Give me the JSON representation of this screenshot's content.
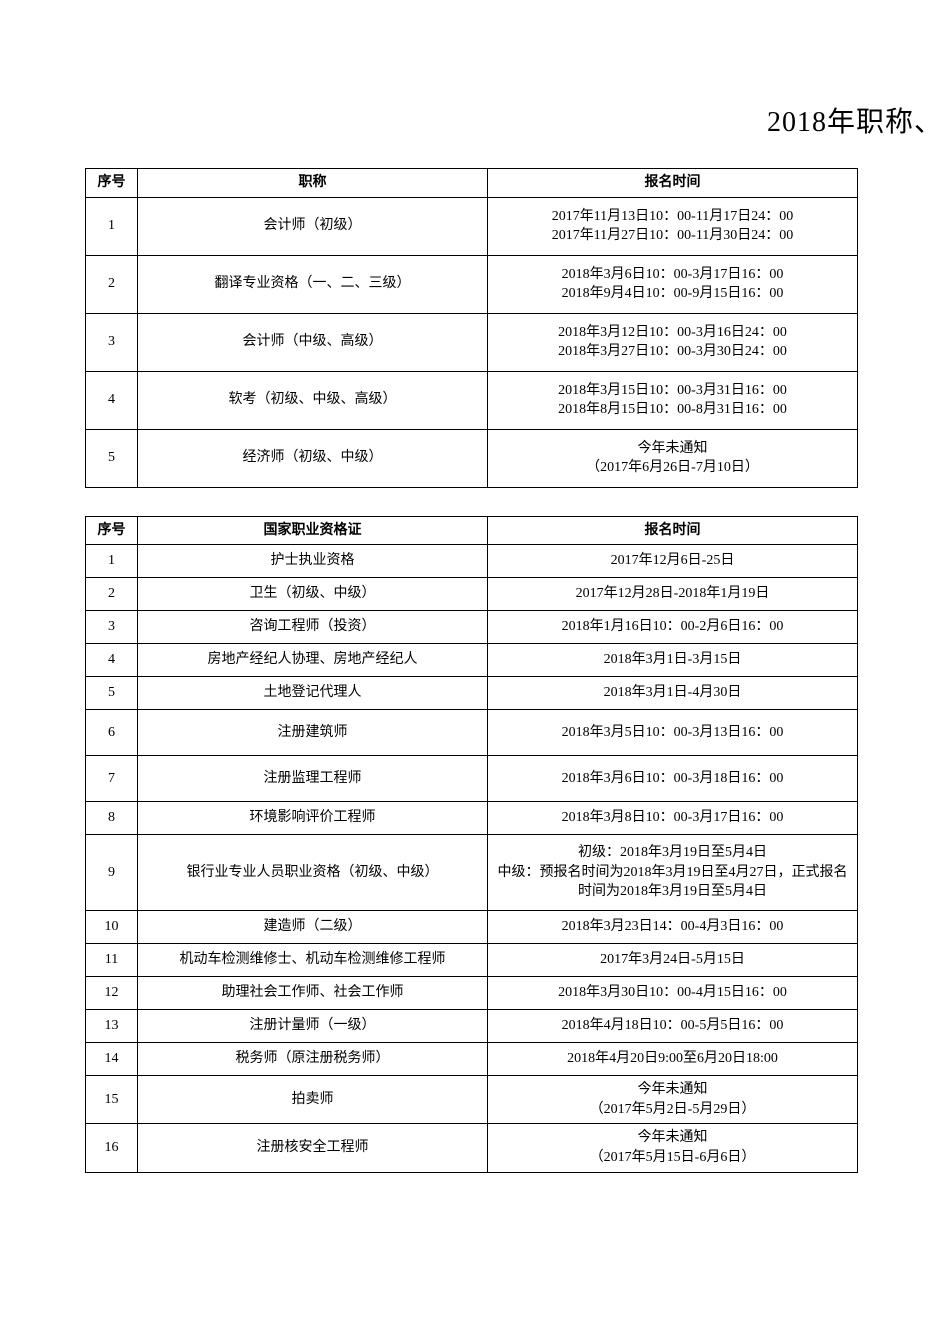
{
  "title": "2018年职称、",
  "table1": {
    "headers": {
      "seq": "序号",
      "title": "职称",
      "time": "报名时间"
    },
    "rows": [
      {
        "seq": "1",
        "title": "会计师（初级）",
        "time": "2017年11月13日10：00-11月17日24：00\n2017年11月27日10：00-11月30日24：00"
      },
      {
        "seq": "2",
        "title": "翻译专业资格（一、二、三级）",
        "time": "2018年3月6日10：00-3月17日16：00\n2018年9月4日10：00-9月15日16：00"
      },
      {
        "seq": "3",
        "title": "会计师（中级、高级）",
        "time": "2018年3月12日10：00-3月16日24：00\n2018年3月27日10：00-3月30日24：00"
      },
      {
        "seq": "4",
        "title": "软考（初级、中级、高级）",
        "time": "2018年3月15日10：00-3月31日16：00\n2018年8月15日10：00-8月31日16：00"
      },
      {
        "seq": "5",
        "title": "经济师（初级、中级）",
        "time": "今年未通知\n（2017年6月26日-7月10日）"
      }
    ]
  },
  "table2": {
    "headers": {
      "seq": "序号",
      "title": "国家职业资格证",
      "time": "报名时间"
    },
    "rows": [
      {
        "seq": "1",
        "title": "护士执业资格",
        "time": "2017年12月6日-25日",
        "rowClass": "normal"
      },
      {
        "seq": "2",
        "title": "卫生（初级、中级）",
        "time": "2017年12月28日-2018年1月19日",
        "rowClass": "normal"
      },
      {
        "seq": "3",
        "title": "咨询工程师（投资）",
        "time": "2018年1月16日10：00-2月6日16：00",
        "rowClass": "normal"
      },
      {
        "seq": "4",
        "title": "房地产经纪人协理、房地产经纪人",
        "time": "2018年3月1日-3月15日",
        "rowClass": "normal"
      },
      {
        "seq": "5",
        "title": "土地登记代理人",
        "time": "2018年3月1日-4月30日",
        "rowClass": "normal"
      },
      {
        "seq": "6",
        "title": "注册建筑师",
        "time": "2018年3月5日10：00-3月13日16：00",
        "rowClass": "tall"
      },
      {
        "seq": "7",
        "title": "注册监理工程师",
        "time": "2018年3月6日10：00-3月18日16：00",
        "rowClass": "tall"
      },
      {
        "seq": "8",
        "title": "环境影响评价工程师",
        "time": "2018年3月8日10：00-3月17日16：00",
        "rowClass": "normal"
      },
      {
        "seq": "9",
        "title": "银行业专业人员职业资格（初级、中级）",
        "time": "初级：2018年3月19日至5月4日\n中级：预报名时间为2018年3月19日至4月27日，正式报名时间为2018年3月19日至5月4日",
        "rowClass": "xtall"
      },
      {
        "seq": "10",
        "title": "建造师（二级）",
        "time": "2018年3月23日14：00-4月3日16：00",
        "rowClass": "normal"
      },
      {
        "seq": "11",
        "title": "机动车检测维修士、机动车检测维修工程师",
        "time": "2017年3月24日-5月15日",
        "rowClass": "normal"
      },
      {
        "seq": "12",
        "title": "助理社会工作师、社会工作师",
        "time": "2018年3月30日10：00-4月15日16：00",
        "rowClass": "normal"
      },
      {
        "seq": "13",
        "title": "注册计量师（一级）",
        "time": "2018年4月18日10：00-5月5日16：00",
        "rowClass": "normal"
      },
      {
        "seq": "14",
        "title": "税务师（原注册税务师）",
        "time": "2018年4月20日9:00至6月20日18:00",
        "rowClass": "normal"
      },
      {
        "seq": "15",
        "title": "拍卖师",
        "time": "今年未通知\n（2017年5月2日-5月29日）",
        "rowClass": "tall"
      },
      {
        "seq": "16",
        "title": "注册核安全工程师",
        "time": "今年未通知\n（2017年5月15日-6月6日）",
        "rowClass": "tall"
      }
    ]
  },
  "colors": {
    "text": "#000000",
    "background": "#ffffff",
    "border": "#000000"
  },
  "layout": {
    "pageWidth": 945,
    "pageHeight": 1337,
    "col_seq_width": 52,
    "col_title_width": 350,
    "col_time_width": 370
  }
}
